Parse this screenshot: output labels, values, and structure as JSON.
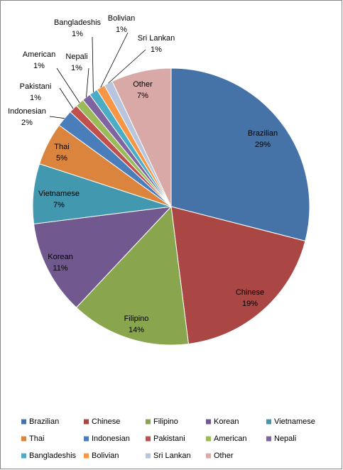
{
  "chart_data": {
    "type": "pie",
    "categories": [
      "Brazilian",
      "Chinese",
      "Filipino",
      "Korean",
      "Vietnamese",
      "Thai",
      "Indonesian",
      "Pakistani",
      "American",
      "Nepali",
      "Bangladeshis",
      "Bolivian",
      "Sri Lankan",
      "Other"
    ],
    "values": [
      29,
      19,
      14,
      11,
      7,
      5,
      2,
      1,
      1,
      1,
      1,
      1,
      1,
      7
    ],
    "value_labels": [
      "29%",
      "19%",
      "14%",
      "11%",
      "7%",
      "5%",
      "2%",
      "1%",
      "1%",
      "1%",
      "1%",
      "1%",
      "1%",
      "7%"
    ],
    "colors": [
      "#4572a7",
      "#aa4643",
      "#89a54e",
      "#71588f",
      "#4198af",
      "#db843d",
      "#4a7ebb",
      "#c0504d",
      "#9bbb59",
      "#8064a2",
      "#4bacc6",
      "#f79646",
      "#b7c5df",
      "#d9a9a8"
    ],
    "legend": "bottom"
  }
}
